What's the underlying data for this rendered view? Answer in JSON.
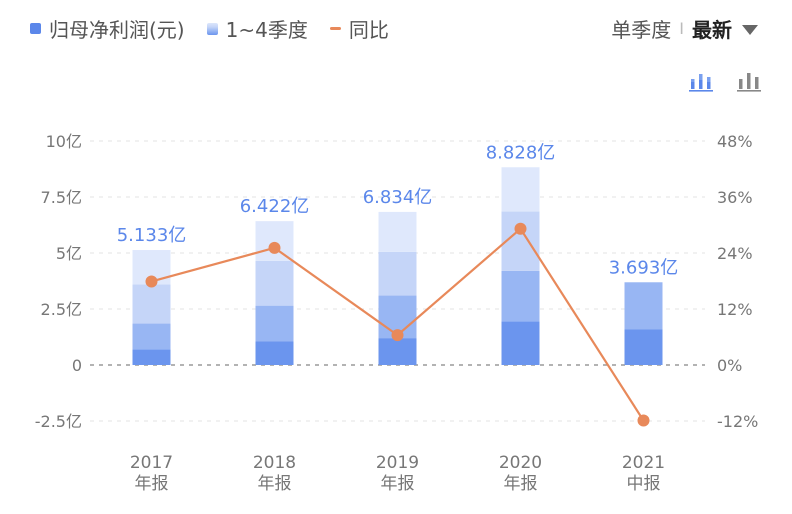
{
  "legend": {
    "items": [
      {
        "label": "归母净利润(元)",
        "color": "#5b87ea"
      },
      {
        "label": "1~4季度"
      },
      {
        "label": "同比",
        "color": "#e8895a"
      }
    ]
  },
  "period": {
    "option": "单季度",
    "separator": "I",
    "selected": "最新"
  },
  "view_toggles": [
    {
      "icon": "stacked-bar-chart-icon",
      "active": true
    },
    {
      "icon": "bar-chart-icon",
      "active": false
    }
  ],
  "chart_data": {
    "type": "bar",
    "categories": [
      "2017\n年报",
      "2018\n年报",
      "2019\n年报",
      "2020\n年报",
      "2021\n中报"
    ],
    "category_lines": [
      [
        "2017",
        "年报"
      ],
      [
        "2018",
        "年报"
      ],
      [
        "2019",
        "年报"
      ],
      [
        "2020",
        "年报"
      ],
      [
        "2021",
        "中报"
      ]
    ],
    "stacked_quarters": [
      [
        0.7,
        1.15,
        1.75,
        1.533
      ],
      [
        1.05,
        1.6,
        2.0,
        1.772
      ],
      [
        1.2,
        1.9,
        1.95,
        1.784
      ],
      [
        1.95,
        2.25,
        2.65,
        1.978
      ],
      [
        1.6,
        2.093
      ]
    ],
    "totals": [
      5.133,
      6.422,
      6.834,
      8.828,
      3.693
    ],
    "total_labels": [
      "5.133亿",
      "6.422亿",
      "6.834亿",
      "8.828亿",
      "3.693亿"
    ],
    "yoy": [
      17.9,
      25.1,
      6.4,
      29.2,
      -11.9
    ],
    "y_left": {
      "ticks": [
        -2.5,
        0,
        2.5,
        5,
        7.5,
        10
      ],
      "labels": [
        "-2.5亿",
        "0",
        "2.5亿",
        "5亿",
        "7.5亿",
        "10亿"
      ],
      "range": [
        -2.5,
        10
      ]
    },
    "y_right": {
      "ticks": [
        -12,
        0,
        12,
        24,
        36,
        48
      ],
      "labels": [
        "-12%",
        "0%",
        "12%",
        "24%",
        "36%",
        "48%"
      ],
      "range": [
        -12,
        48
      ]
    },
    "colors": {
      "quarters": [
        "#6b95ee",
        "#98b6f3",
        "#c5d5f8",
        "#dfe8fc"
      ],
      "line": "#e8895a",
      "label": "#5b87ea"
    }
  }
}
